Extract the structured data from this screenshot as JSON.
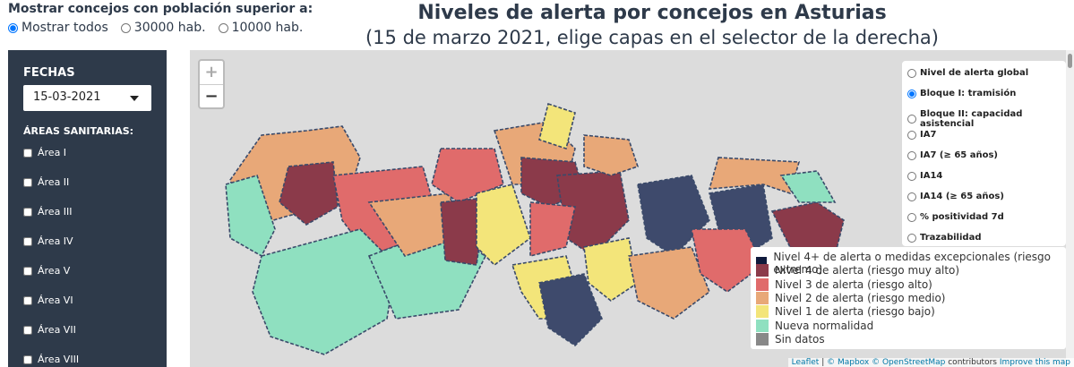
{
  "filter": {
    "label": "Mostrar concejos con población superior a:",
    "options": [
      "Mostrar todos",
      "30000 hab.",
      "10000 hab."
    ],
    "selected": 0
  },
  "header": {
    "title": "Niveles de alerta por concejos en Asturias",
    "subtitle": "(15 de marzo 2021, elige capas en el selector de la derecha)"
  },
  "sidebar": {
    "dates_label": "FECHAS",
    "date": "15-03-2021",
    "areas_label": "ÁREAS SANITARIAS:",
    "areas": [
      "Área I",
      "Área II",
      "Área III",
      "Área IV",
      "Área V",
      "Área VI",
      "Área VII",
      "Área VIII"
    ]
  },
  "map": {
    "zoom_in": "+",
    "zoom_out": "−",
    "layers": [
      "Nivel de alerta global",
      "Bloque I: tramisión",
      "Bloque II: capacidad asistencial",
      "IA7",
      "IA7 (≥ 65 años)",
      "IA14",
      "IA14 (≥ 65 años)",
      "% positividad 7d",
      "Trazabilidad"
    ],
    "selected_layer": 1,
    "legend": [
      {
        "label": "Nivel 4+ de alerta o medidas excepcionales (riesgo extremo)",
        "color": "#0f1a3c"
      },
      {
        "label": "Nivel 4 de alerta (riesgo muy alto)",
        "color": "#8b3a4a"
      },
      {
        "label": "Nivel 3 de alerta (riesgo alto)",
        "color": "#e06b6b"
      },
      {
        "label": "Nivel 2 de alerta (riesgo medio)",
        "color": "#e8a878"
      },
      {
        "label": "Nivel 1 de alerta (riesgo bajo)",
        "color": "#f3e57a"
      },
      {
        "label": "Nueva normalidad",
        "color": "#8fe0c0"
      },
      {
        "label": "Sin datos",
        "color": "#888888"
      }
    ],
    "attribution": [
      "Leaflet",
      "|",
      "© Mapbox",
      "© OpenStreetMap",
      "contributors",
      "Improve this map"
    ]
  }
}
